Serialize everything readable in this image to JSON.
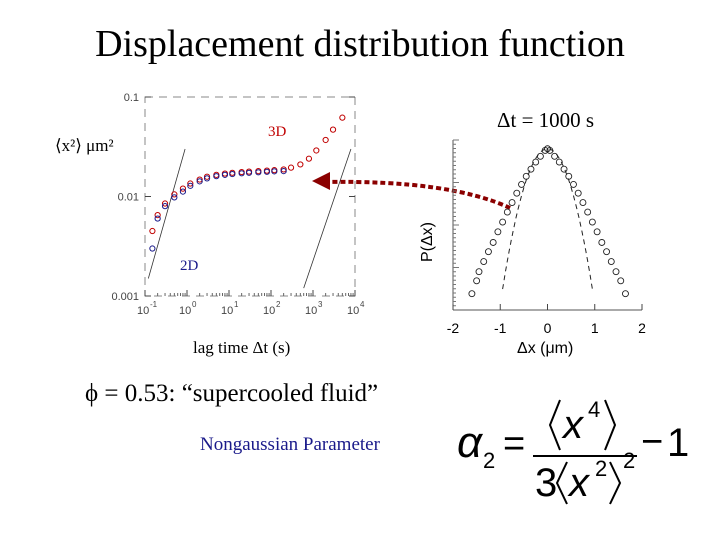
{
  "slide": {
    "title": "Displacement distribution function",
    "phi_text": "ϕ = 0.53: “supercooled fluid”",
    "ngp_label": "Nongaussian Parameter"
  },
  "chart_data": [
    {
      "type": "scatter",
      "y_label": "⟨x²⟩  μm²",
      "x_label": "lag time Δt (s)",
      "x_scale": "log",
      "y_scale": "log",
      "xlim": [
        0.1,
        10000
      ],
      "ylim": [
        0.001,
        0.1
      ],
      "x_ticks": [
        "10-1",
        "100",
        "101",
        "102",
        "103",
        "104"
      ],
      "y_ticks": [
        "0.1",
        "0.01",
        "0.001"
      ],
      "annotations": [
        "3D",
        "2D"
      ],
      "series": [
        {
          "color": "#c00000",
          "x": [
            0.15,
            0.2,
            0.3,
            0.5,
            0.8,
            1.2,
            2,
            3,
            5,
            8,
            12,
            20,
            30,
            50,
            80,
            120,
            200,
            300,
            500,
            800,
            1200,
            2000,
            3000,
            5000
          ],
          "y": [
            0.0045,
            0.0065,
            0.0085,
            0.0105,
            0.012,
            0.0135,
            0.0148,
            0.0158,
            0.0165,
            0.017,
            0.0173,
            0.0176,
            0.0178,
            0.018,
            0.0182,
            0.0184,
            0.0187,
            0.0195,
            0.021,
            0.024,
            0.029,
            0.037,
            0.047,
            0.062
          ]
        },
        {
          "color": "#1a1a8a",
          "x": [
            0.15,
            0.2,
            0.3,
            0.5,
            0.8,
            1.2,
            2,
            3,
            5,
            8,
            12,
            20,
            30,
            50,
            80,
            120,
            200
          ],
          "y": [
            0.003,
            0.006,
            0.008,
            0.0098,
            0.0112,
            0.0128,
            0.0142,
            0.0152,
            0.016,
            0.0165,
            0.0168,
            0.0171,
            0.0173,
            0.0175,
            0.0177,
            0.0179,
            0.018
          ]
        }
      ],
      "guides": [
        {
          "x": [
            0.12,
            0.9
          ],
          "y": [
            0.0015,
            0.03
          ]
        },
        {
          "x": [
            600,
            8000
          ],
          "y": [
            0.0012,
            0.03
          ]
        }
      ]
    },
    {
      "type": "scatter",
      "title": "Δt = 1000 s",
      "y_label": "P(Δx)",
      "x_label": "Δx (μm)",
      "x_ticks": [
        "-2",
        "-1",
        "0",
        "1",
        "2"
      ],
      "xlim": [
        -2,
        2
      ],
      "y_scale": "log",
      "points": {
        "x": [
          -1.6,
          -1.5,
          -1.45,
          -1.35,
          -1.25,
          -1.15,
          -1.05,
          -0.95,
          -0.85,
          -0.75,
          -0.65,
          -0.55,
          -0.45,
          -0.35,
          -0.25,
          -0.15,
          -0.05,
          0,
          0.05,
          0.15,
          0.25,
          0.35,
          0.45,
          0.55,
          0.65,
          0.75,
          0.85,
          0.95,
          1.05,
          1.15,
          1.25,
          1.35,
          1.45,
          1.55,
          1.65
        ],
        "y": [
          0.02,
          0.03,
          0.04,
          0.055,
          0.075,
          0.1,
          0.14,
          0.19,
          0.26,
          0.35,
          0.47,
          0.62,
          0.8,
          1.0,
          1.25,
          1.5,
          1.8,
          1.9,
          1.8,
          1.5,
          1.25,
          1.0,
          0.8,
          0.62,
          0.47,
          0.35,
          0.26,
          0.19,
          0.14,
          0.1,
          0.075,
          0.055,
          0.04,
          0.03,
          0.02
        ]
      },
      "gaussian_fit": {
        "sigma": 0.32,
        "peak": 1.9
      }
    }
  ],
  "formula": {
    "lhs": "α",
    "lhs_sub": "2",
    "equals": "=",
    "num_base": "x",
    "num_exp": "4",
    "den_coef": "3",
    "den_base": "x",
    "den_exp": "2",
    "den_outer_exp": "2",
    "minus": "−",
    "one": "1"
  }
}
